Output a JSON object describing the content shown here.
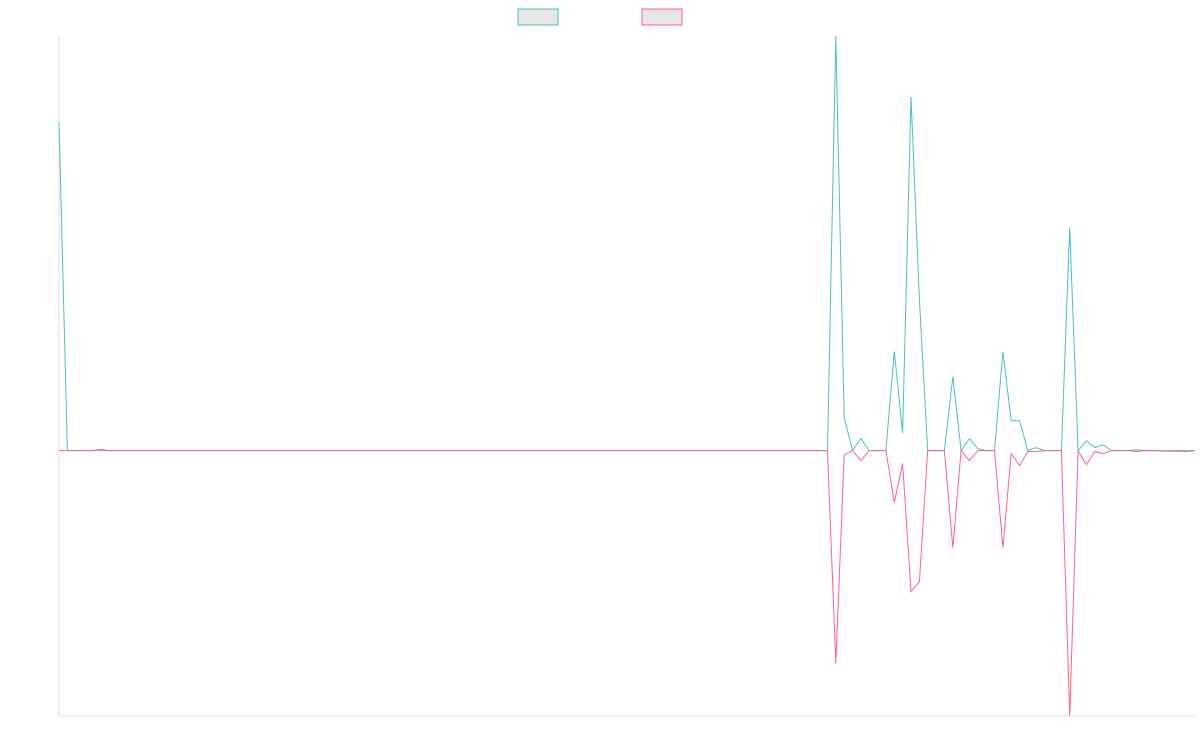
{
  "chart_data": {
    "type": "line",
    "x": [
      0,
      1,
      4,
      5,
      6,
      92,
      93,
      94,
      95,
      96,
      97,
      98,
      99,
      100,
      101,
      102,
      103,
      104,
      105,
      106,
      107,
      108,
      109,
      110,
      111,
      112,
      113,
      114,
      115,
      116,
      117,
      118,
      119,
      120,
      121,
      122,
      123,
      124,
      125,
      126,
      127,
      128,
      129,
      130,
      135,
      136
    ],
    "xlim": [
      0,
      136
    ],
    "ylim": [
      -64,
      100
    ],
    "legend": "top",
    "series": [
      {
        "color": "#4bc0c0",
        "values": [
          79.3,
          0,
          0,
          0,
          0,
          0,
          100,
          8,
          0,
          2.9,
          0,
          0,
          0,
          23.9,
          4.3,
          85.3,
          36.4,
          0,
          0,
          0,
          17.8,
          0,
          2.9,
          0.5,
          0,
          0,
          23.9,
          7.2,
          7.2,
          0,
          0.7,
          0,
          0,
          0,
          53.7,
          0,
          2.4,
          0.7,
          1.4,
          0,
          0,
          0,
          0.2,
          0,
          0,
          0
        ]
      },
      {
        "color": "#ff6384",
        "values": [
          0,
          0,
          0,
          0.3,
          0,
          0,
          -51.3,
          -1,
          0,
          -2.4,
          0,
          0,
          0,
          -12.5,
          -3.1,
          -34,
          -31.6,
          0,
          0,
          0,
          -23.4,
          0,
          -2.4,
          0,
          0,
          0,
          -23.4,
          -0.7,
          -3.6,
          -0.2,
          -0.2,
          0,
          0,
          0,
          -63.9,
          0,
          -3.4,
          -0.2,
          -0.7,
          0,
          0,
          0,
          -0.2,
          0,
          -0.2,
          0
        ]
      }
    ]
  }
}
